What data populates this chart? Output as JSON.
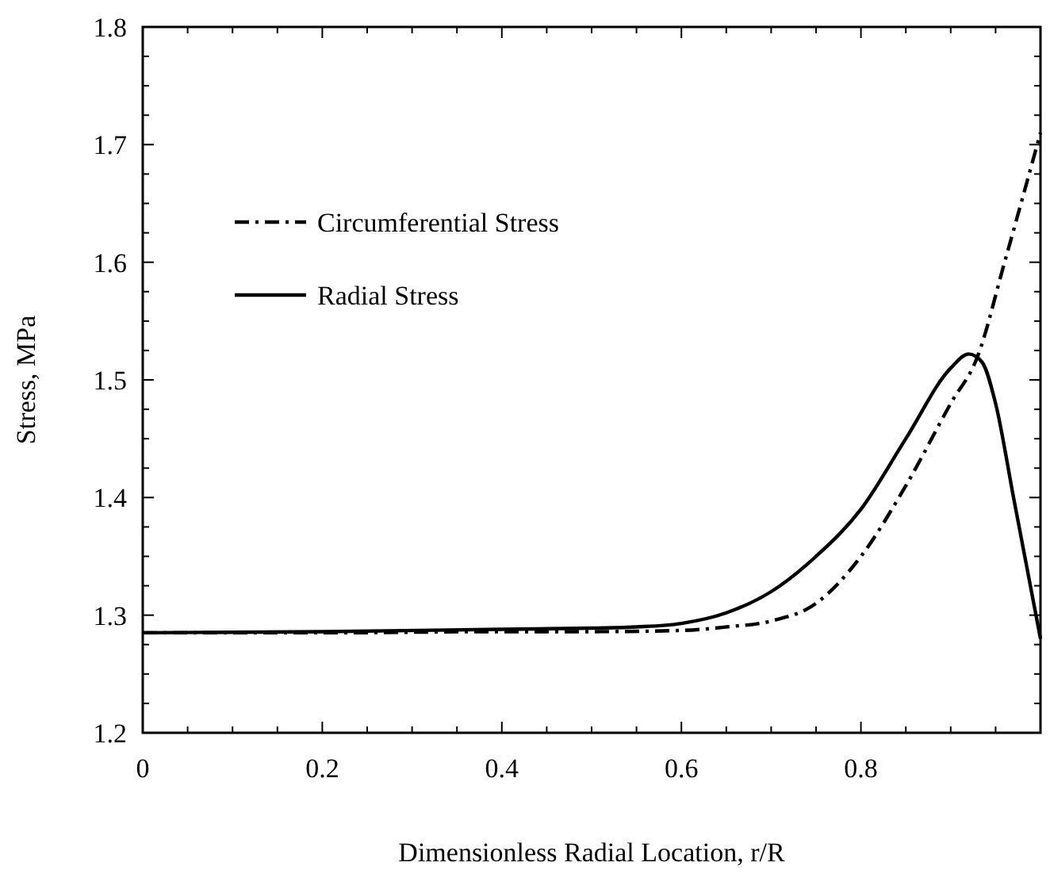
{
  "chart_data": {
    "type": "line",
    "xlabel": "Dimensionless Radial Location, r/R",
    "ylabel": "Stress, MPa",
    "xlim": [
      0,
      1
    ],
    "ylim": [
      1.2,
      1.8
    ],
    "xticks": [
      0,
      {
        "value": 0.05,
        "label": null
      },
      {
        "value": 0.1,
        "label": null
      },
      {
        "value": 0.15,
        "label": null
      },
      0.2,
      {
        "value": 0.25,
        "label": null
      },
      {
        "value": 0.3,
        "label": null
      },
      {
        "value": 0.35,
        "label": null
      },
      0.4,
      {
        "value": 0.45,
        "label": null
      },
      {
        "value": 0.5,
        "label": null
      },
      {
        "value": 0.55,
        "label": null
      },
      0.6,
      {
        "value": 0.65,
        "label": null
      },
      {
        "value": 0.7,
        "label": null
      },
      {
        "value": 0.75,
        "label": null
      },
      0.8,
      {
        "value": 0.85,
        "label": null
      },
      {
        "value": 0.9,
        "label": null
      },
      {
        "value": 0.95,
        "label": null
      },
      {
        "value": 1,
        "label": null
      }
    ],
    "yticks": [
      1.2,
      {
        "value": 1.225,
        "label": null
      },
      {
        "value": 1.25,
        "label": null
      },
      {
        "value": 1.275,
        "label": null
      },
      1.3,
      {
        "value": 1.325,
        "label": null
      },
      {
        "value": 1.35,
        "label": null
      },
      {
        "value": 1.375,
        "label": null
      },
      1.4,
      {
        "value": 1.425,
        "label": null
      },
      {
        "value": 1.45,
        "label": null
      },
      {
        "value": 1.475,
        "label": null
      },
      1.5,
      {
        "value": 1.525,
        "label": null
      },
      {
        "value": 1.55,
        "label": null
      },
      {
        "value": 1.575,
        "label": null
      },
      1.6,
      {
        "value": 1.625,
        "label": null
      },
      {
        "value": 1.65,
        "label": null
      },
      {
        "value": 1.675,
        "label": null
      },
      1.7,
      {
        "value": 1.725,
        "label": null
      },
      {
        "value": 1.75,
        "label": null
      },
      {
        "value": 1.775,
        "label": null
      },
      1.8
    ],
    "legend": "top left",
    "grid": false,
    "series": [
      {
        "name": "Circumferential Stress",
        "color": "#000000",
        "line_style": "dashed",
        "x": [
          0,
          0.2,
          0.4,
          0.5,
          0.6,
          0.65,
          0.7,
          0.75,
          0.8,
          0.85,
          0.9,
          0.93,
          0.96,
          1.0
        ],
        "values": [
          1.285,
          1.285,
          1.286,
          1.286,
          1.287,
          1.29,
          1.295,
          1.31,
          1.35,
          1.41,
          1.48,
          1.52,
          1.6,
          1.71
        ]
      },
      {
        "name": "Radial Stress",
        "color": "#000000",
        "line_style": "solid",
        "x": [
          0,
          0.2,
          0.4,
          0.5,
          0.55,
          0.6,
          0.65,
          0.7,
          0.75,
          0.8,
          0.85,
          0.9,
          0.92,
          0.935,
          0.95,
          0.97,
          1.0
        ],
        "values": [
          1.285,
          1.286,
          1.288,
          1.289,
          1.29,
          1.293,
          1.302,
          1.32,
          1.35,
          1.39,
          1.45,
          1.51,
          1.522,
          1.515,
          1.48,
          1.4,
          1.28
        ]
      }
    ]
  }
}
